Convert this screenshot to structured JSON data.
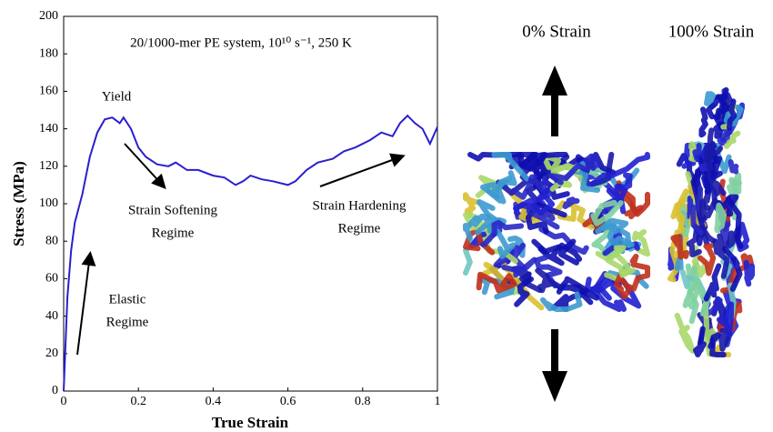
{
  "chart_data": {
    "type": "line",
    "title": "20/1000-mer PE system, 10¹⁰ s⁻¹, 250 K",
    "x_label": "True Strain",
    "y_label": "Stress (MPa)",
    "x": [
      0,
      0.01,
      0.02,
      0.03,
      0.05,
      0.07,
      0.09,
      0.11,
      0.13,
      0.15,
      0.16,
      0.18,
      0.2,
      0.22,
      0.25,
      0.28,
      0.3,
      0.33,
      0.36,
      0.4,
      0.43,
      0.46,
      0.48,
      0.5,
      0.53,
      0.56,
      0.6,
      0.62,
      0.65,
      0.68,
      0.72,
      0.75,
      0.78,
      0.82,
      0.85,
      0.88,
      0.9,
      0.92,
      0.94,
      0.96,
      0.98,
      1.0
    ],
    "series": [
      {
        "color": "#2a1fd0",
        "values": [
          0,
          50,
          75,
          90,
          105,
          125,
          138,
          145,
          146,
          143,
          146,
          140,
          130,
          125,
          121,
          120,
          122,
          118,
          118,
          115,
          114,
          110,
          112,
          115,
          113,
          112,
          110,
          112,
          118,
          122,
          124,
          128,
          130,
          134,
          138,
          136,
          143,
          147,
          143,
          140,
          132,
          141
        ]
      }
    ],
    "xlim": [
      0,
      1
    ],
    "ylim": [
      0,
      200
    ],
    "xticks": [
      0,
      0.2,
      0.4,
      0.6,
      0.8,
      1
    ],
    "yticks": [
      0,
      20,
      40,
      60,
      80,
      100,
      120,
      140,
      160,
      180,
      200
    ],
    "grid": false,
    "annotations": [
      [
        "Yield"
      ],
      [
        "Strain Softening",
        "Regime"
      ],
      [
        "Strain Hardening",
        "Regime"
      ],
      [
        "Elastic",
        "Regime"
      ]
    ]
  },
  "images": [
    {
      "label": "0% Strain"
    },
    {
      "label": "100% Strain"
    }
  ]
}
